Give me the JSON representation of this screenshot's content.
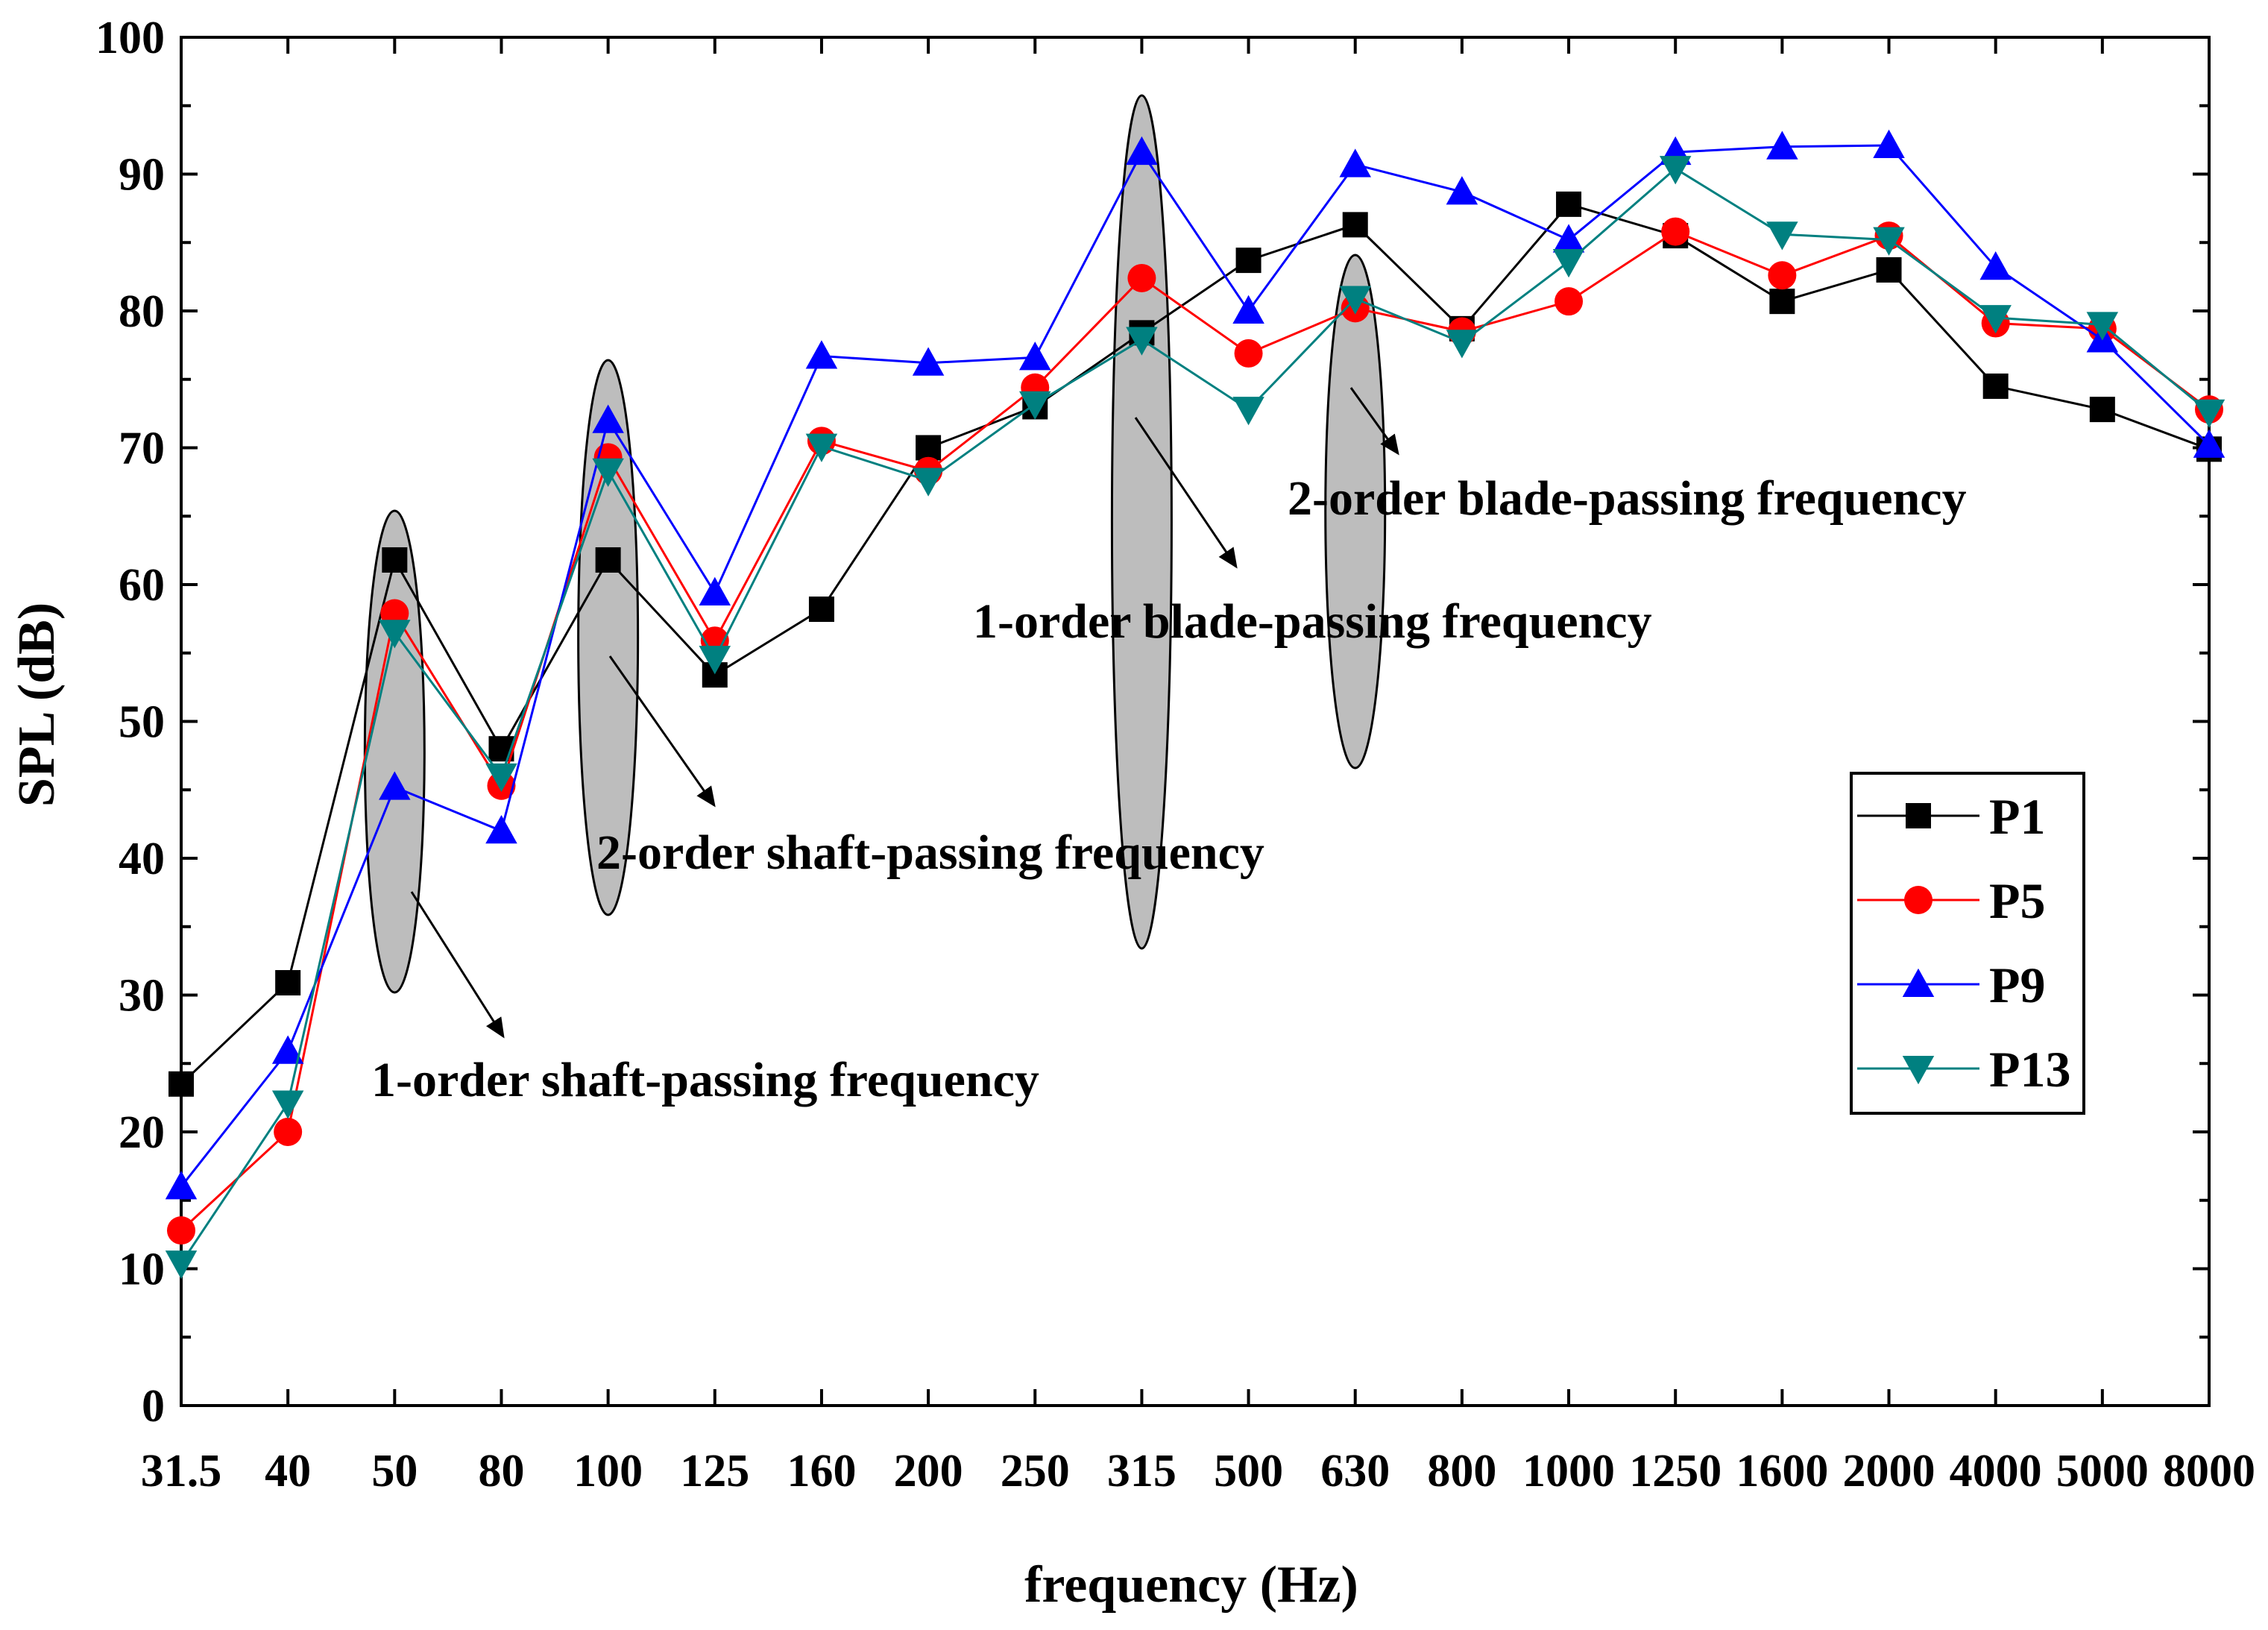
{
  "chart_data": {
    "type": "line",
    "title": "",
    "xlabel": "frequency (Hz)",
    "ylabel": "SPL (dB)",
    "categories": [
      "31.5",
      "40",
      "50",
      "80",
      "100",
      "125",
      "160",
      "200",
      "250",
      "315",
      "500",
      "630",
      "800",
      "1000",
      "1250",
      "1600",
      "2000",
      "4000",
      "5000",
      "8000"
    ],
    "ylim": [
      0,
      100
    ],
    "yticks": [
      "0",
      "10",
      "20",
      "30",
      "40",
      "50",
      "60",
      "70",
      "80",
      "90",
      "100"
    ],
    "legend_position": "right-middle",
    "series": [
      {
        "name": "P1",
        "color": "#000000",
        "marker": "square",
        "values": [
          23.5,
          30.9,
          61.8,
          48.0,
          61.8,
          53.4,
          58.2,
          70.0,
          73.0,
          78.4,
          83.7,
          86.3,
          78.7,
          87.8,
          85.5,
          80.7,
          83.0,
          74.5,
          72.8,
          69.9
        ]
      },
      {
        "name": "P5",
        "color": "#ff0000",
        "marker": "circle",
        "values": [
          12.8,
          20.0,
          57.9,
          45.3,
          69.3,
          55.9,
          70.5,
          68.3,
          74.4,
          82.4,
          76.9,
          80.2,
          78.5,
          80.7,
          85.8,
          82.6,
          85.5,
          79.1,
          78.7,
          72.8
        ]
      },
      {
        "name": "P9",
        "color": "#0000ff",
        "marker": "triangle-up",
        "values": [
          16.0,
          25.9,
          45.2,
          42.0,
          72.0,
          59.4,
          76.7,
          76.2,
          76.6,
          91.6,
          80.0,
          90.7,
          88.7,
          85.2,
          91.6,
          92.0,
          92.1,
          83.2,
          77.9,
          70.2
        ]
      },
      {
        "name": "P13",
        "color": "#008080",
        "marker": "triangle-down",
        "values": [
          10.4,
          22.1,
          56.5,
          46.0,
          68.3,
          54.6,
          70.1,
          67.6,
          73.2,
          77.9,
          72.8,
          80.9,
          77.7,
          83.6,
          90.4,
          85.6,
          85.2,
          79.5,
          79.0,
          72.6
        ]
      }
    ],
    "annotations": [
      {
        "text": "1-order shaft-passing frequency",
        "category": "50"
      },
      {
        "text": "2-order shaft-passing frequency",
        "category": "100"
      },
      {
        "text": "1-order blade-passing frequency",
        "category": "315"
      },
      {
        "text": "2-order blade-passing frequency",
        "category": "630"
      }
    ]
  }
}
